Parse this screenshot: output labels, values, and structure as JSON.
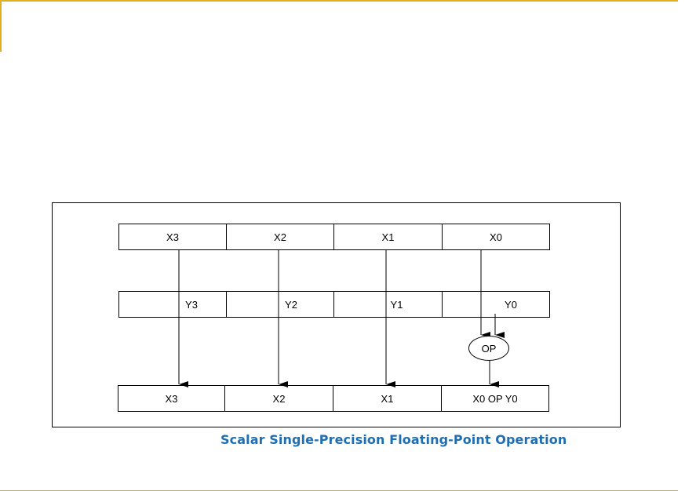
{
  "diagram": {
    "caption": "Scalar Single-Precision Floating-Point Operation",
    "source_row": [
      "X3",
      "X2",
      "X1",
      "X0"
    ],
    "second_row": [
      "Y3",
      "Y2",
      "Y1",
      "Y0"
    ],
    "op_label": "OP",
    "result_row": [
      "X3",
      "X2",
      "X1",
      "X0 OP Y0"
    ]
  },
  "colors": {
    "rule": "#e0b11a",
    "caption": "#1e6eb4"
  }
}
